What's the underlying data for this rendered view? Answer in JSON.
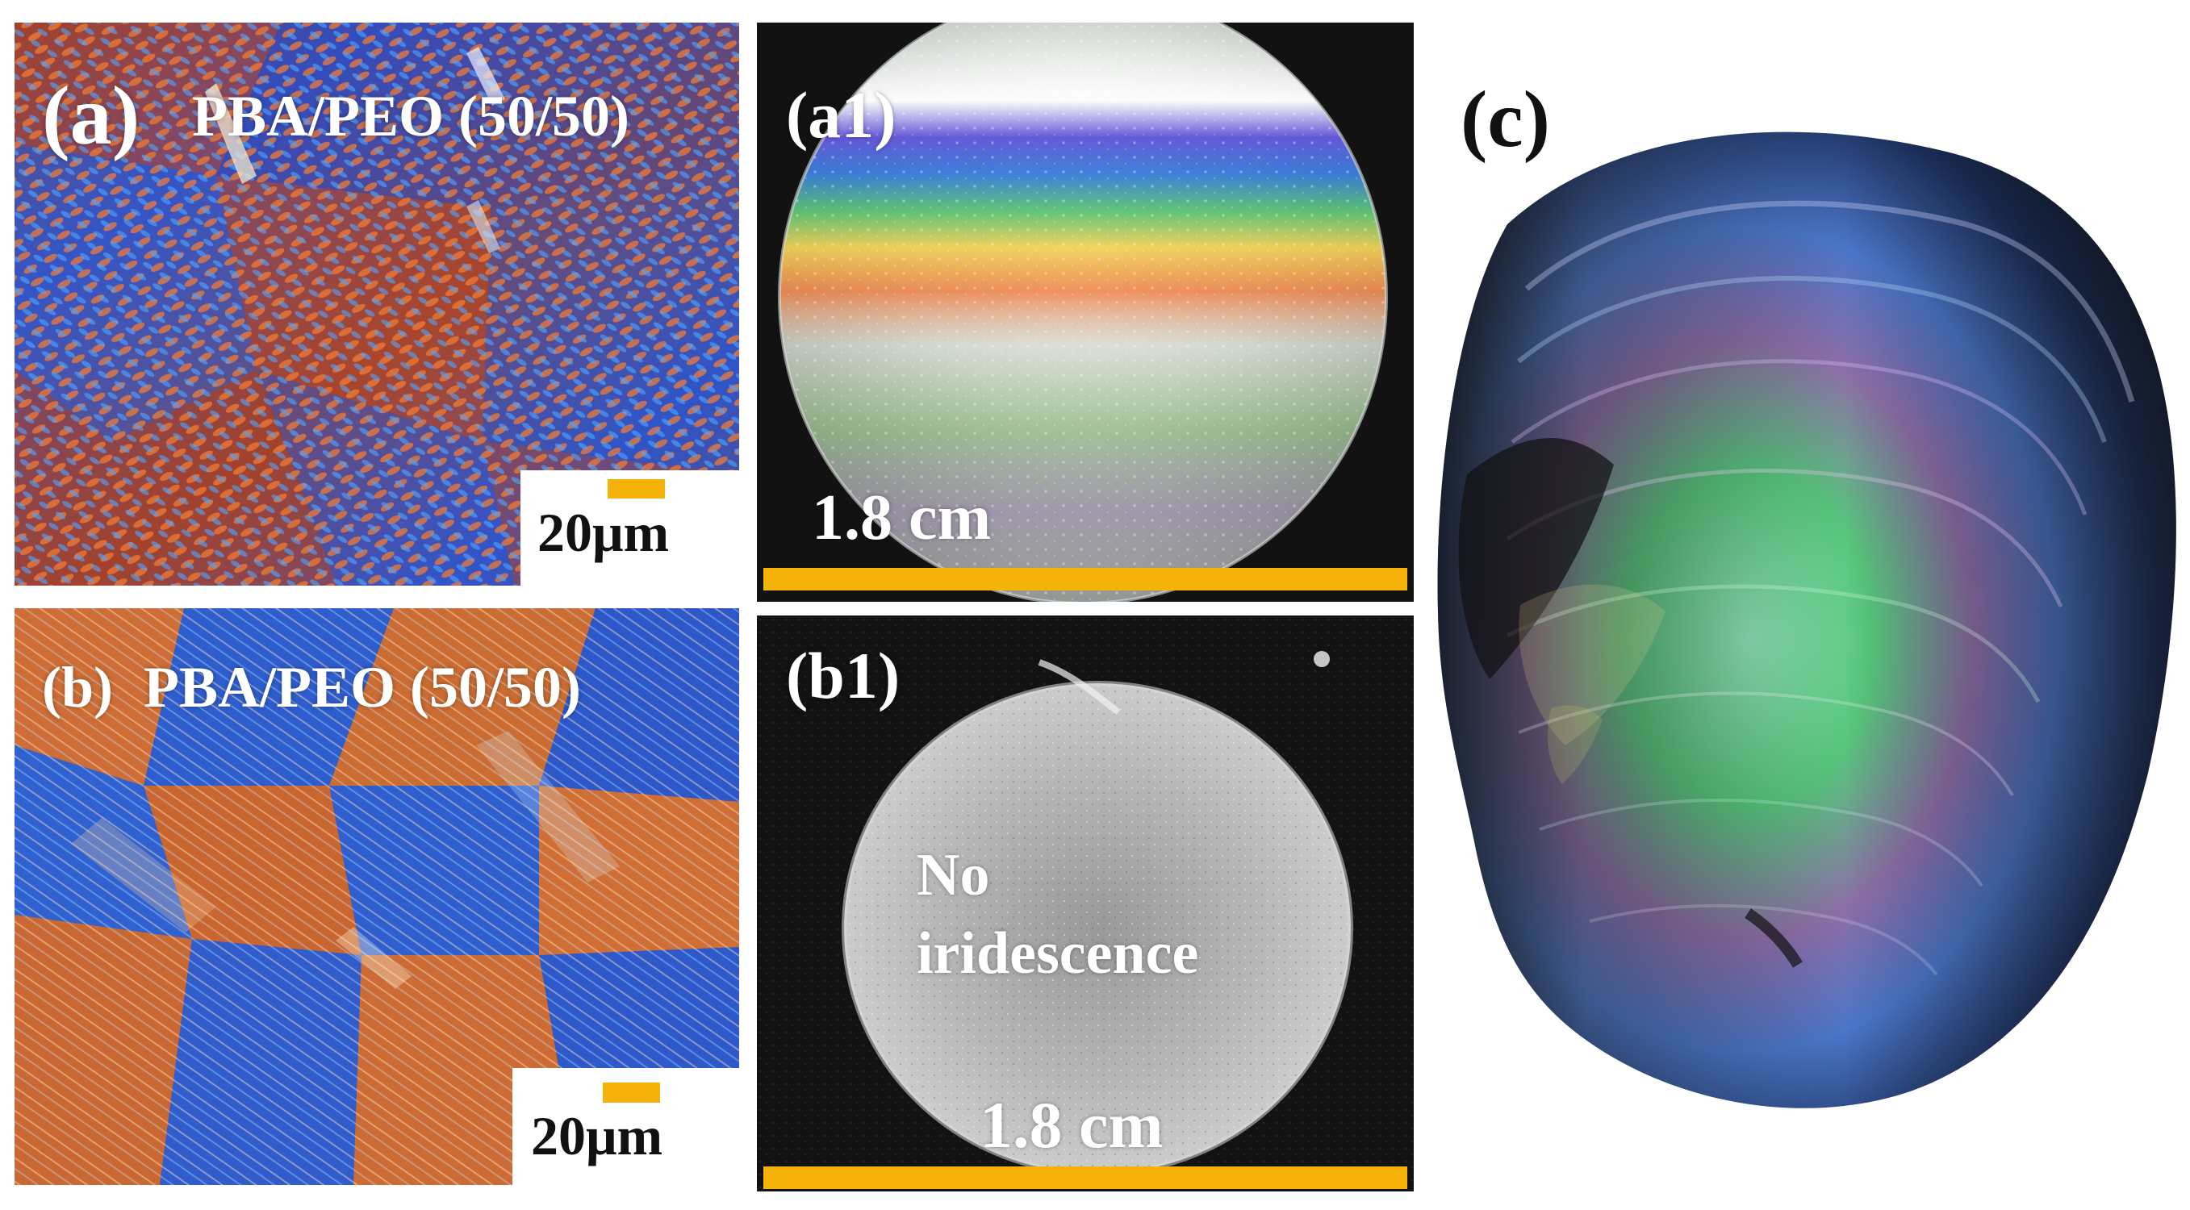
{
  "figure": {
    "panel_a": {
      "label": "(a)",
      "sample": "PBA/PEO (50/50)",
      "scale_label": "20μm"
    },
    "panel_a1": {
      "label": "(a1)",
      "scale_label": "1.8 cm"
    },
    "panel_b": {
      "label": "(b)",
      "sample": "PBA/PEO (50/50)",
      "scale_label": "20μm"
    },
    "panel_b1": {
      "label": "(b1)",
      "note_line1": "No",
      "note_line2": "iridescence",
      "scale_label": "1.8 cm"
    },
    "panel_c": {
      "label": "(c)"
    }
  },
  "colors": {
    "scale_bar": "#f5b20a",
    "micrograph_orange": "#c8622a",
    "micrograph_blue": "#2f6fd8",
    "photo_background": "#121212"
  }
}
